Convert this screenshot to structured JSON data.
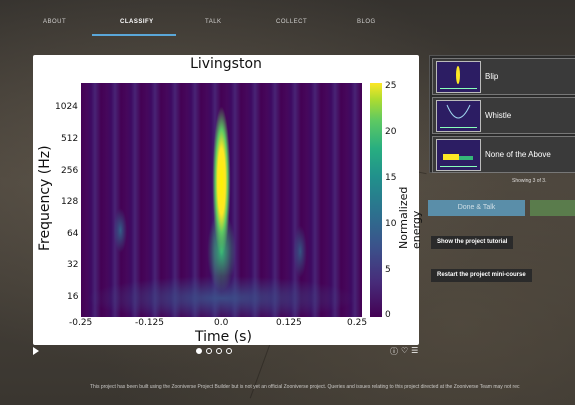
{
  "nav": {
    "items": [
      "ABOUT",
      "CLASSIFY",
      "TALK",
      "COLLECT",
      "BLOG"
    ],
    "active": "CLASSIFY"
  },
  "viewer": {
    "title": "Livingston",
    "y_axis_label": "Frequency (Hz)",
    "x_axis_label": "Time (s)",
    "colorbar_label": "Normalized energy",
    "y_ticks": [
      "1024",
      "512",
      "256",
      "128",
      "64",
      "32",
      "16"
    ],
    "x_ticks": [
      "-0.25",
      "-0.125",
      "0.0",
      "0.125",
      "0.25"
    ],
    "colorbar_ticks": [
      "25",
      "20",
      "15",
      "10",
      "5",
      "0"
    ],
    "frames": 4,
    "current_frame": 1
  },
  "chart_data": {
    "type": "heatmap",
    "title": "Livingston",
    "xlabel": "Time (s)",
    "ylabel": "Frequency (Hz)",
    "colorbar_label": "Normalized energy",
    "xlim": [
      -0.25,
      0.25
    ],
    "yscale": "log2",
    "y_ticks": [
      16,
      32,
      64,
      128,
      256,
      512,
      1024
    ],
    "colorbar_range": [
      0,
      25
    ],
    "colormap": "viridis"
  },
  "task": {
    "answers": [
      {
        "label": "Blip",
        "icon": "blip-thumbnail"
      },
      {
        "label": "Whistle",
        "icon": "whistle-thumbnail"
      },
      {
        "label": "None of the Above",
        "icon": "none-thumbnail"
      }
    ],
    "showing_text": "Showing 3 of 3.",
    "done_talk_label": "Done & Talk",
    "tutorial_label": "Show the project tutorial",
    "mini_course_label": "Restart the project mini-course"
  },
  "footer": {
    "text": "This project has been built using the Zooniverse Project Builder but is not yet an official Zooniverse project. Queries and issues relating to this project directed at the Zooniverse Team may not rec"
  },
  "colors": {
    "nav_underline": "#5aa7d9",
    "done_button": "#5a8ea9",
    "next_button": "#5a7c4c"
  }
}
